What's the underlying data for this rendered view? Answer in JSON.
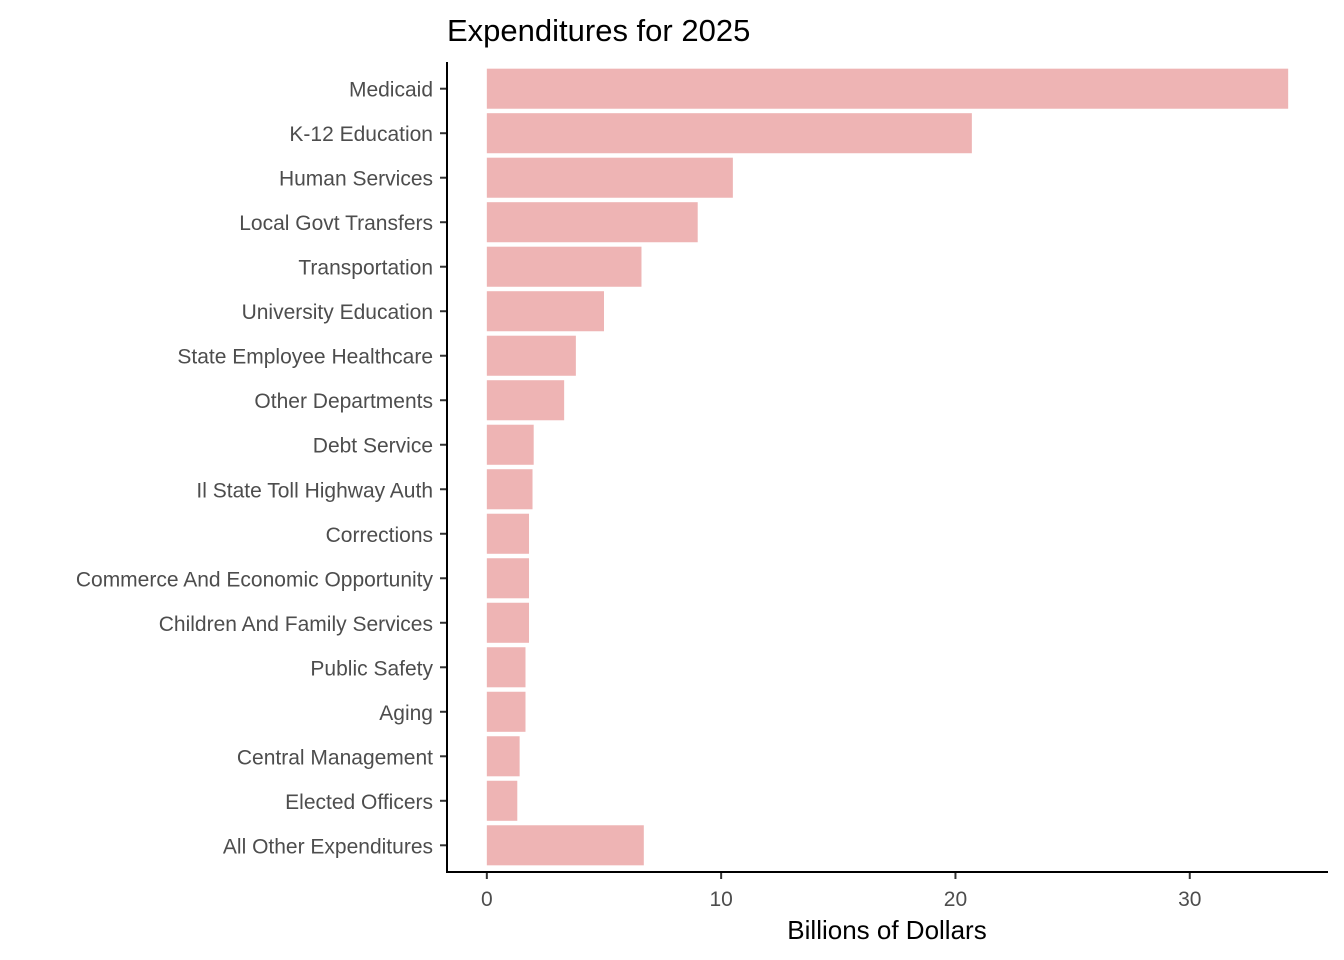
{
  "chart_data": {
    "type": "bar",
    "orientation": "horizontal",
    "title": "Expenditures for 2025",
    "xlabel": "Billions of Dollars",
    "ylabel": "",
    "xlim": [
      -1.7,
      35.9
    ],
    "xticks": [
      0,
      10,
      20,
      30
    ],
    "xtick_labels": [
      "0",
      "10",
      "20",
      "30"
    ],
    "grid": false,
    "legend": "none",
    "bar_color": "#eeb4b4",
    "categories": [
      "Medicaid",
      "K-12 Education",
      "Human Services",
      "Local Govt Transfers",
      "Transportation",
      "University Education",
      "State Employee Healthcare",
      "Other Departments",
      "Debt Service",
      "Il State Toll Highway Auth",
      "Corrections",
      "Commerce And Economic Opportunity",
      "Children And Family Services",
      "Public Safety",
      "Aging",
      "Central Management",
      "Elected Officers",
      "All Other Expenditures"
    ],
    "values": [
      34.2,
      20.7,
      10.5,
      9.0,
      6.6,
      5.0,
      3.8,
      3.3,
      2.0,
      1.95,
      1.8,
      1.8,
      1.8,
      1.65,
      1.65,
      1.4,
      1.3,
      6.7
    ]
  }
}
